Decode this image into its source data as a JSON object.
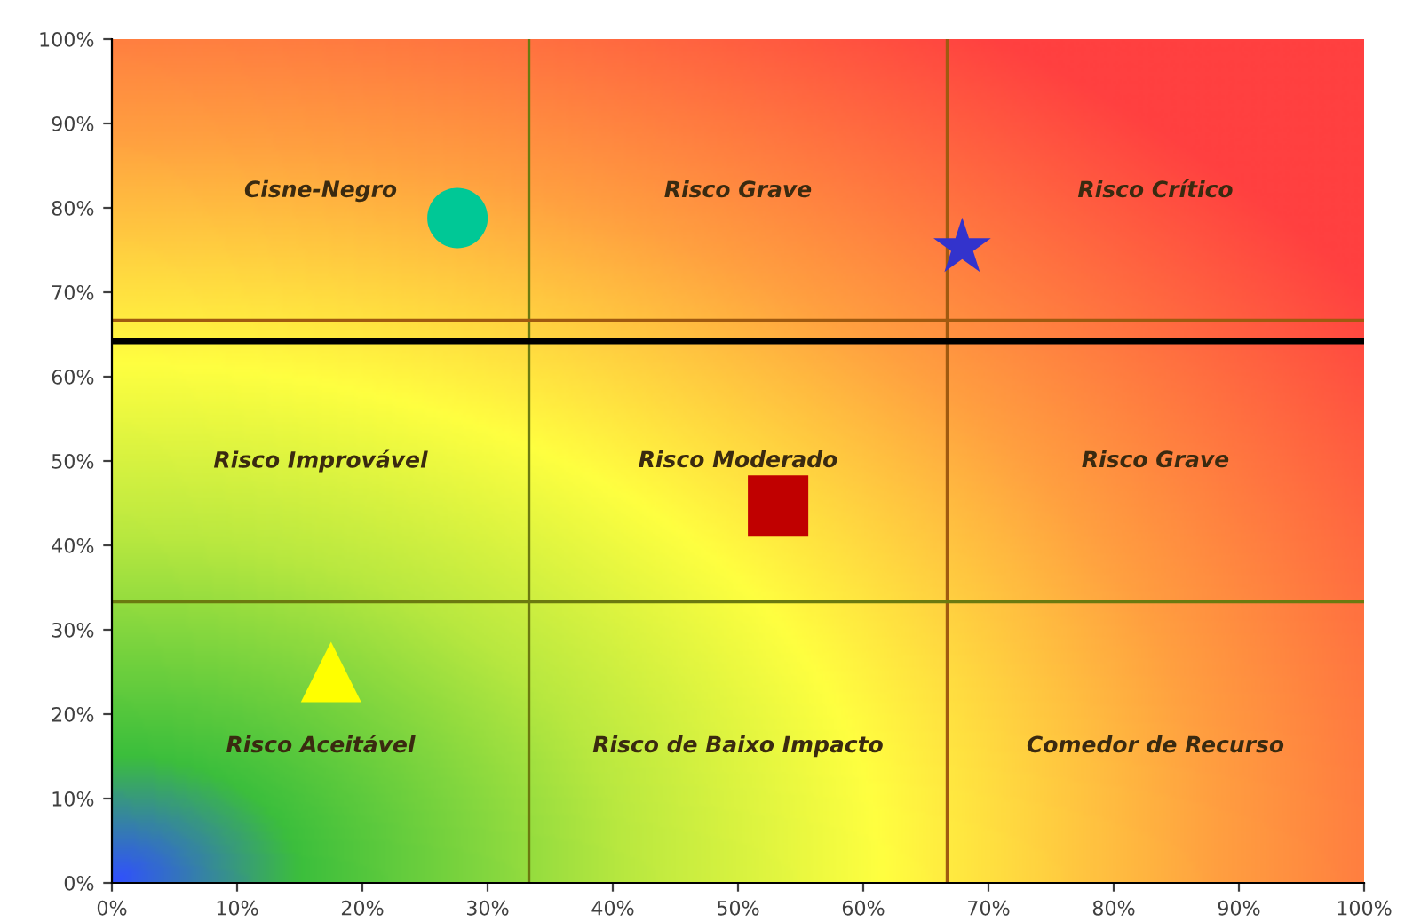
{
  "chart_data": {
    "type": "scatter",
    "xlim": [
      0,
      100
    ],
    "ylim": [
      0,
      100
    ],
    "xticks": [
      {
        "value": 0,
        "label": "0%"
      },
      {
        "value": 10,
        "label": "10%"
      },
      {
        "value": 20,
        "label": "20%"
      },
      {
        "value": 30,
        "label": "30%"
      },
      {
        "value": 40,
        "label": "40%"
      },
      {
        "value": 50,
        "label": "50%"
      },
      {
        "value": 60,
        "label": "60%"
      },
      {
        "value": 70,
        "label": "70%"
      },
      {
        "value": 80,
        "label": "80%"
      },
      {
        "value": 90,
        "label": "90%"
      },
      {
        "value": 100,
        "label": "100%"
      }
    ],
    "yticks": [
      {
        "value": 0,
        "label": "0%"
      },
      {
        "value": 10,
        "label": "10%"
      },
      {
        "value": 20,
        "label": "20%"
      },
      {
        "value": 30,
        "label": "30%"
      },
      {
        "value": 40,
        "label": "40%"
      },
      {
        "value": 50,
        "label": "50%"
      },
      {
        "value": 60,
        "label": "60%"
      },
      {
        "value": 70,
        "label": "70%"
      },
      {
        "value": 80,
        "label": "80%"
      },
      {
        "value": 90,
        "label": "90%"
      },
      {
        "value": 100,
        "label": "100%"
      }
    ],
    "grid": false,
    "series": [
      {
        "color": "#00c896",
        "marker": "circle",
        "x": [
          27.6
        ],
        "values": [
          78.8
        ]
      },
      {
        "color": "#3333cc",
        "marker": "star",
        "x": [
          67.9
        ],
        "values": [
          75.3
        ]
      },
      {
        "color": "#c00000",
        "marker": "square",
        "x": [
          53.2
        ],
        "values": [
          44.7
        ]
      },
      {
        "color": "#ffff00",
        "marker": "triangle",
        "x": [
          17.5
        ],
        "values": [
          25
        ]
      }
    ],
    "ref_lines": [
      {
        "axis": "x",
        "value": 33.3,
        "color": "#6b7a10"
      },
      {
        "axis": "x",
        "value": 66.7,
        "color": "#a05a10"
      },
      {
        "axis": "y",
        "value": 33.3,
        "color": "#6b7a10"
      },
      {
        "axis": "y",
        "value": 66.7,
        "color": "#a05a10"
      },
      {
        "axis": "y",
        "value": 64.2,
        "color": "#000000"
      }
    ],
    "annotations": [
      "Cisne-Negro",
      "Risco Grave",
      "Risco Crítico",
      "Risco Improvável",
      "Risco Moderado",
      "Risco Grave",
      "Risco Aceitável",
      "Risco de Baixo Impacto",
      "Comedor de Recurso"
    ]
  }
}
